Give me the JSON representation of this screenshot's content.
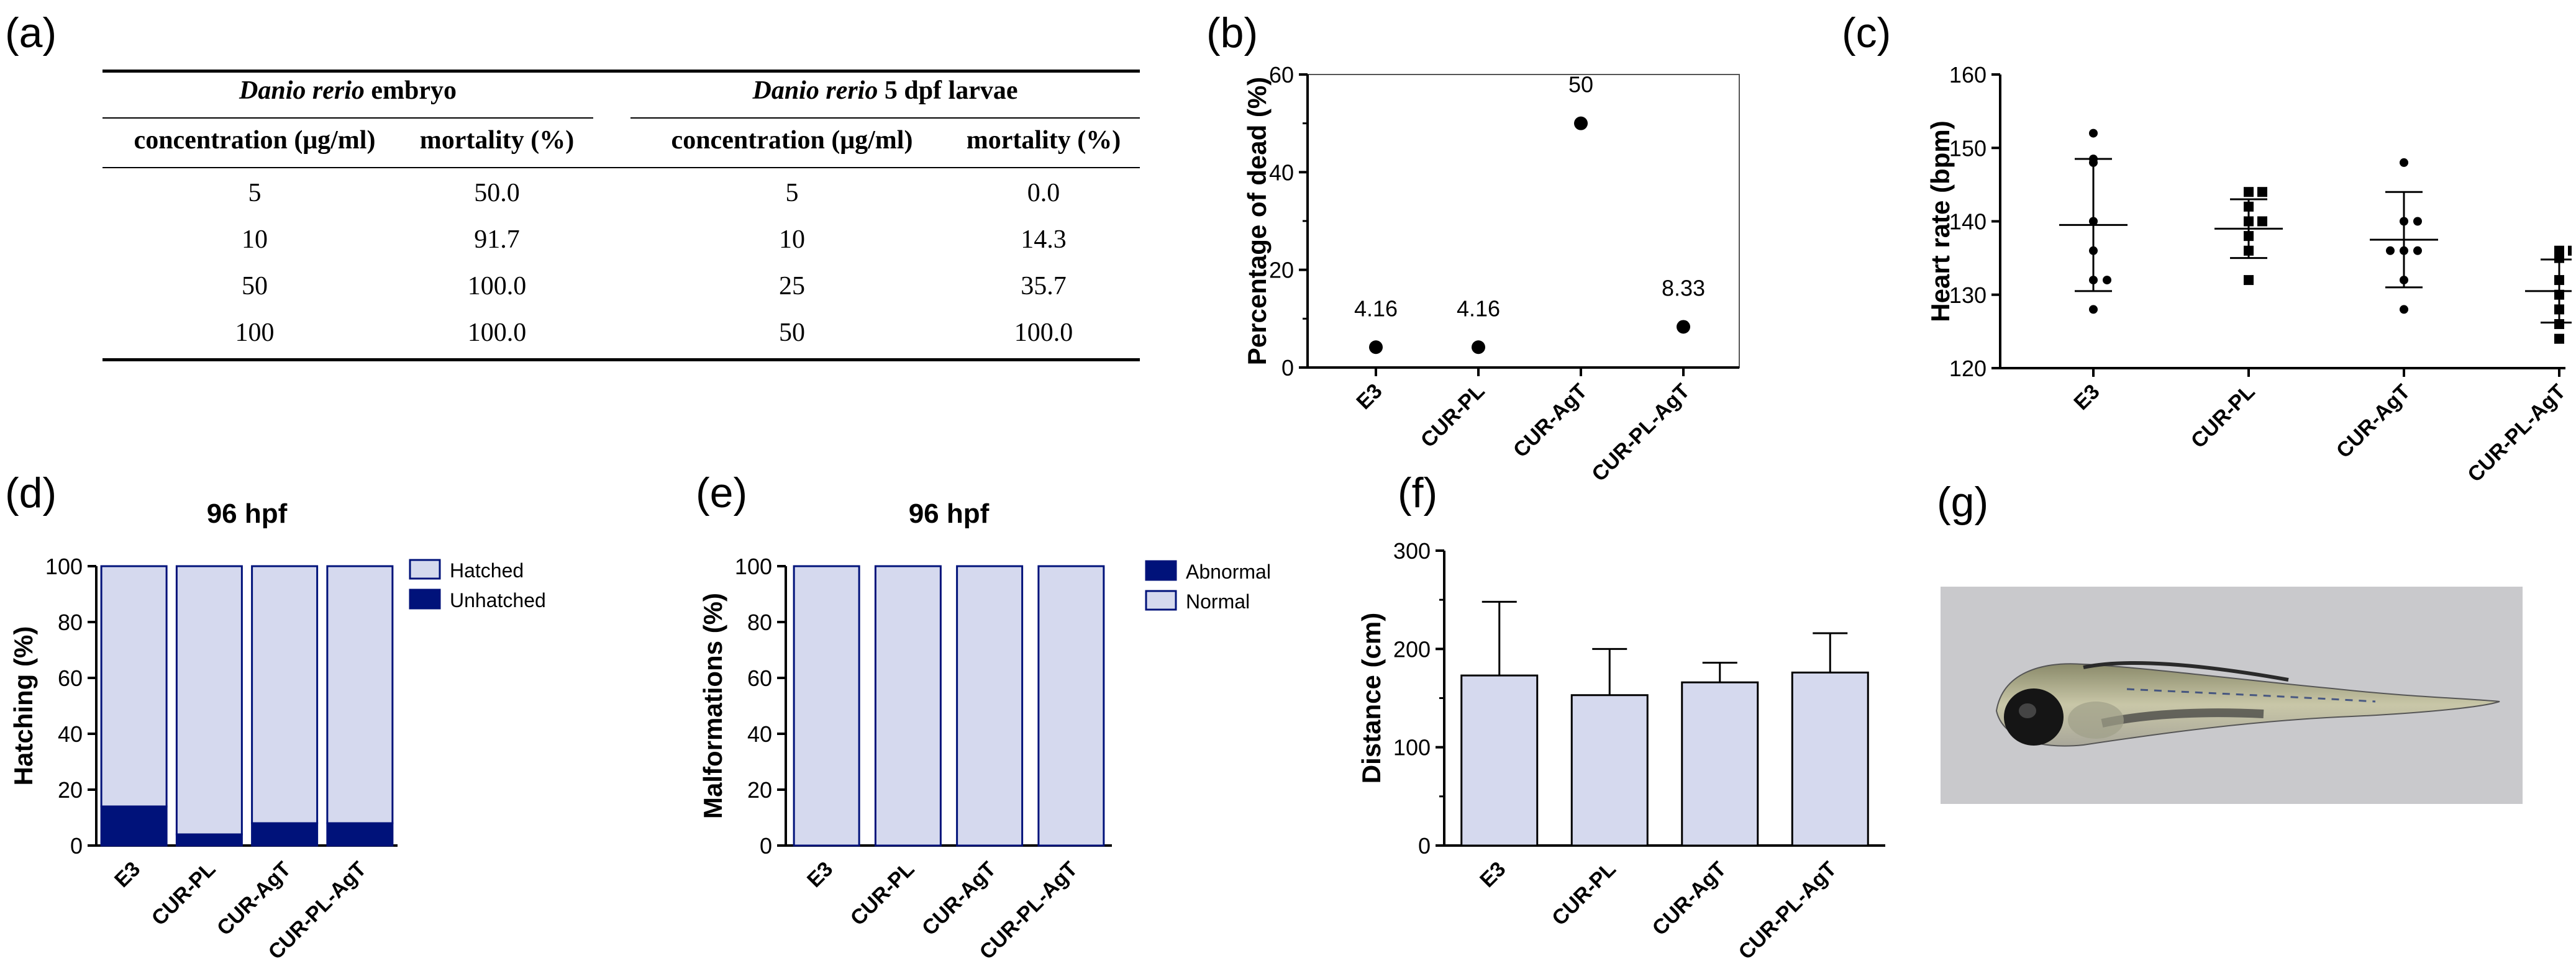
{
  "panel_labels": {
    "a": "(a)",
    "b": "(b)",
    "c": "(c)",
    "d": "(d)",
    "e": "(e)",
    "f": "(f)",
    "g": "(g)"
  },
  "table": {
    "groups": [
      {
        "species": "Danio rerio",
        "stage": "embryo"
      },
      {
        "species": "Danio rerio",
        "stage": "5 dpf larvae"
      }
    ],
    "headers": [
      "concentration (μg/ml)",
      "mortality (%)",
      "concentration (μg/ml)",
      "mortality (%)"
    ],
    "rows": [
      [
        "5",
        "50.0",
        "5",
        "0.0"
      ],
      [
        "10",
        "91.7",
        "10",
        "14.3"
      ],
      [
        "50",
        "100.0",
        "25",
        "35.7"
      ],
      [
        "100",
        "100.0",
        "50",
        "100.0"
      ]
    ]
  },
  "chart_data": [
    {
      "id": "b",
      "type": "scatter",
      "categories": [
        "E3",
        "CUR-PL",
        "CUR-AgT",
        "CUR-PL-AgT"
      ],
      "values": [
        4.16,
        4.16,
        50,
        8.33
      ],
      "data_labels": [
        "4.16",
        "4.16",
        "50",
        "8.33"
      ],
      "ylabel": "Percentage of dead (%)",
      "ylim": [
        0,
        60
      ],
      "yticks": [
        0,
        20,
        40,
        60
      ]
    },
    {
      "id": "c",
      "type": "scatter",
      "categories": [
        "E3",
        "CUR-PL",
        "CUR-AgT",
        "CUR-PL-AgT"
      ],
      "ylabel": "Heart rate (bpm)",
      "ylim": [
        120,
        160
      ],
      "yticks": [
        120,
        130,
        140,
        150,
        160
      ],
      "series": [
        {
          "points": [
            152,
            148.5,
            148,
            140,
            136,
            132,
            132,
            128
          ],
          "mean": 139.5,
          "sd": 9
        },
        {
          "points": [
            144,
            144,
            142,
            140,
            140,
            138,
            136,
            132
          ],
          "mean": 139,
          "sd": 4
        },
        {
          "points": [
            148,
            140,
            140,
            136,
            136,
            136,
            132,
            128
          ],
          "mean": 137.5,
          "sd": 6.5
        },
        {
          "points": [
            136,
            136,
            135,
            132,
            130,
            128,
            126,
            124
          ],
          "mean": 130.5,
          "sd": 4.3
        }
      ]
    },
    {
      "id": "d",
      "type": "bar",
      "title": "96 hpf",
      "categories": [
        "E3",
        "CUR-PL",
        "CUR-AgT",
        "CUR-PL-AgT"
      ],
      "ylabel": "Hatching (%)",
      "ylim": [
        0,
        100
      ],
      "yticks": [
        0,
        20,
        40,
        60,
        80,
        100
      ],
      "legend_position": "top-right",
      "series": [
        {
          "name": "Hatched",
          "values": [
            86,
            96,
            92,
            92
          ],
          "color": "#d5d9ee"
        },
        {
          "name": "Unhatched",
          "values": [
            14,
            4,
            8,
            8
          ],
          "color": "#00127a"
        }
      ]
    },
    {
      "id": "e",
      "type": "bar",
      "title": "96 hpf",
      "categories": [
        "E3",
        "CUR-PL",
        "CUR-AgT",
        "CUR-PL-AgT"
      ],
      "ylabel": "Malformations (%)",
      "ylim": [
        0,
        100
      ],
      "yticks": [
        0,
        20,
        40,
        60,
        80,
        100
      ],
      "legend_position": "top-right",
      "series": [
        {
          "name": "Abnormal",
          "values": [
            0,
            0,
            0,
            0
          ],
          "color": "#00127a"
        },
        {
          "name": "Normal",
          "values": [
            100,
            100,
            100,
            100
          ],
          "color": "#d5d9ee"
        }
      ]
    },
    {
      "id": "f",
      "type": "bar",
      "categories": [
        "E3",
        "CUR-PL",
        "CUR-AgT",
        "CUR-PL-AgT"
      ],
      "values": [
        173,
        153,
        166,
        176
      ],
      "errors": [
        75,
        47,
        20,
        40
      ],
      "ylabel": "Distance (cm)",
      "ylim": [
        0,
        300
      ],
      "yticks": [
        0,
        100,
        200,
        300
      ],
      "color": "#d5d9ee"
    }
  ],
  "colors": {
    "dark_navy": "#00127a",
    "light_fill": "#d5d9ee"
  }
}
